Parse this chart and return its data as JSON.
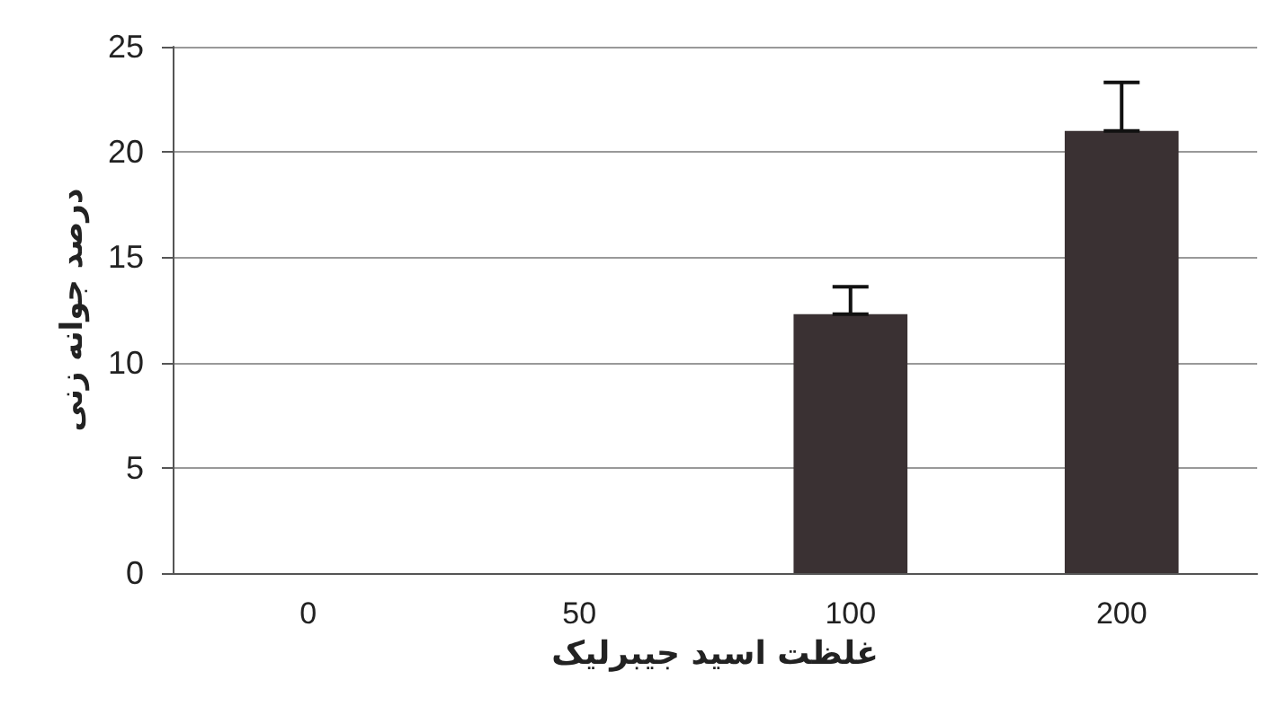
{
  "chart_data": {
    "type": "bar",
    "xlabel": "غلظت اسید جیبرلیک",
    "ylabel": "درصد جوانه زنی",
    "categories": [
      "0",
      "50",
      "100",
      "200"
    ],
    "values": [
      0,
      0,
      12.3,
      21.0
    ],
    "errors": [
      null,
      null,
      [
        12.3,
        13.6
      ],
      [
        21.0,
        23.3
      ]
    ],
    "color": "#3a3133",
    "ylim": [
      0,
      25
    ],
    "yticks": [
      0,
      5,
      10,
      15,
      20,
      25
    ],
    "grid": "y"
  }
}
